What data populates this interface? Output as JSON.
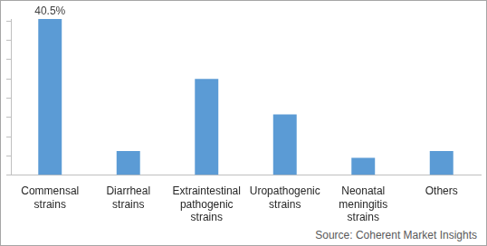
{
  "chart_data": {
    "type": "bar",
    "categories": [
      "Commensal strains",
      "Diarrheal strains",
      "Extraintestinal pathogenic strains",
      "Uropathogenic strains",
      "Neonatal meningitis strains",
      "Others"
    ],
    "values": [
      40.5,
      6.3,
      25,
      15.8,
      4.5,
      6.3
    ],
    "value_labels": [
      "40.5%",
      null,
      null,
      null,
      null,
      null
    ],
    "data_labels": true,
    "color": "#5b9bd5",
    "ylim": [
      0,
      40.5
    ],
    "yticks": [
      0,
      5,
      10,
      15,
      20,
      25,
      30,
      35,
      40
    ],
    "grid": false,
    "tick_labels": "x",
    "source": "Source: Coherent Market Insights"
  }
}
